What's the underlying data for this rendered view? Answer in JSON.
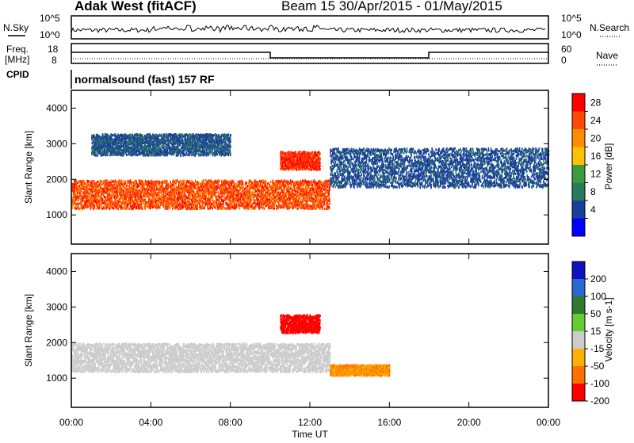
{
  "header": {
    "station_title": "Adak West (fitACF)",
    "beam_date": "Beam 15  30/Apr/2015 - 01/May/2015"
  },
  "top_panels": {
    "nsky_label": "N.Sky",
    "nsearch_label": "N.Search",
    "freq_label_1": "Freq.",
    "freq_label_2": "[MHz]",
    "nave_label": "Nave",
    "cpid_label": "CPID",
    "cpid_value": "normalsound (fast) 157 RF",
    "noise_left_ticks": [
      "10^5",
      "10^0"
    ],
    "noise_right_ticks": [
      "10^5",
      "10^0"
    ],
    "freq_left_ticks": [
      "18",
      "8"
    ],
    "freq_right_ticks": [
      "60",
      "0"
    ]
  },
  "colorbars": {
    "power": {
      "label": "Power [dB]",
      "ticks": [
        "28",
        "24",
        "20",
        "16",
        "12",
        "8",
        "4"
      ],
      "colors": [
        "#ff0000",
        "#ff4a00",
        "#ff8c00",
        "#ffc000",
        "#3c9c3c",
        "#2a7a5e",
        "#1a3f9c",
        "#0000ff"
      ]
    },
    "velocity": {
      "label": "Velocity [m s-1]",
      "ticks": [
        "200",
        "100",
        "50",
        "15",
        "-15",
        "-50",
        "-100",
        "-200"
      ],
      "colors": [
        "#1010c0",
        "#2a6ad0",
        "#2f7a2f",
        "#66cc33",
        "#cccccc",
        "#ffb000",
        "#ff7000",
        "#ff0000"
      ]
    }
  },
  "chart_data": [
    {
      "type": "heatmap",
      "title": "Power",
      "xlabel": "Time UT",
      "ylabel": "Slant Range [km]",
      "x_ticks": [
        "00:00",
        "04:00",
        "08:00",
        "12:00",
        "16:00",
        "20:00",
        "00:00"
      ],
      "y_ticks": [
        "1000",
        "2000",
        "3000",
        "4000"
      ],
      "x_range_hours": [
        0,
        24
      ],
      "y_range_km": [
        180,
        4500
      ],
      "colorbar_label": "Power [dB]",
      "features": [
        {
          "t_start": 0.0,
          "t_end": 13.0,
          "range_km": [
            1200,
            2000
          ],
          "power_db": 24
        },
        {
          "t_start": 1.0,
          "t_end": 8.0,
          "range_km": [
            2700,
            3300
          ],
          "power_db": 6
        },
        {
          "t_start": 10.5,
          "t_end": 12.5,
          "range_km": [
            2300,
            2800
          ],
          "power_db": 26
        },
        {
          "t_start": 13.0,
          "t_end": 24.0,
          "range_km": [
            1800,
            2900
          ],
          "power_db": 5
        }
      ]
    },
    {
      "type": "heatmap",
      "title": "Velocity",
      "xlabel": "Time UT",
      "ylabel": "Slant Range [km]",
      "x_ticks": [
        "00:00",
        "04:00",
        "08:00",
        "12:00",
        "16:00",
        "20:00",
        "00:00"
      ],
      "y_ticks": [
        "1000",
        "2000",
        "3000",
        "4000"
      ],
      "x_range_hours": [
        0,
        24
      ],
      "y_range_km": [
        180,
        4500
      ],
      "colorbar_label": "Velocity [m s-1]",
      "features": [
        {
          "t_start": 0.0,
          "t_end": 13.0,
          "range_km": [
            1200,
            2000
          ],
          "velocity": 0
        },
        {
          "t_start": 10.5,
          "t_end": 12.5,
          "range_km": [
            2300,
            2800
          ],
          "velocity": -200
        },
        {
          "t_start": 13.0,
          "t_end": 16.0,
          "range_km": [
            1100,
            1400
          ],
          "velocity": -50
        }
      ]
    }
  ]
}
